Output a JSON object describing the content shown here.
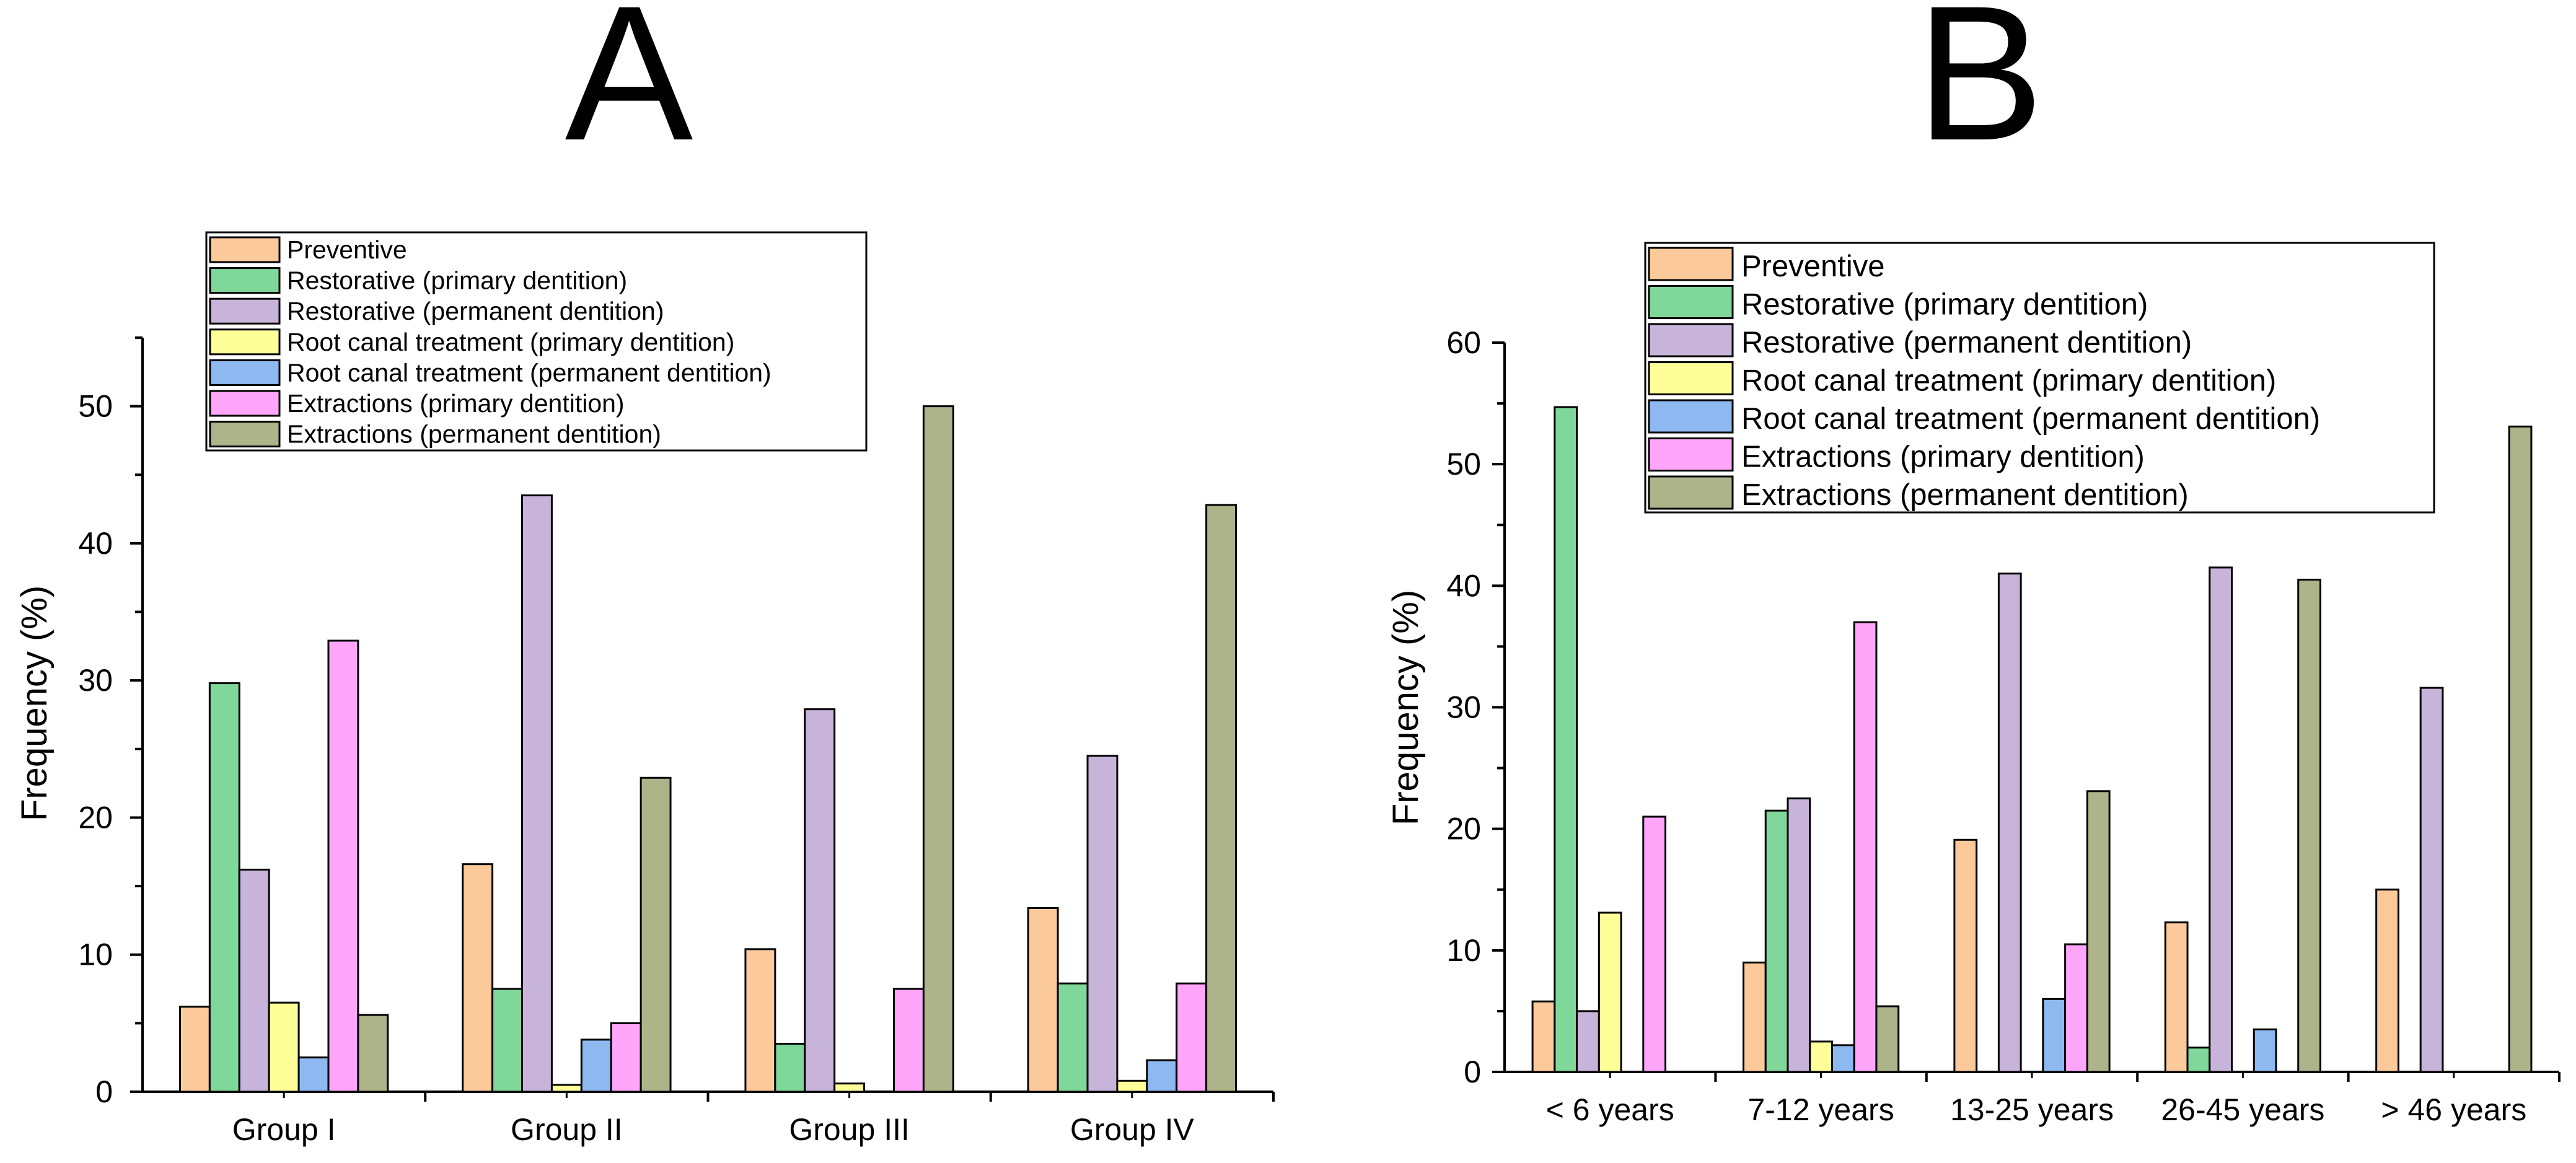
{
  "legend_entries": [
    {
      "name": "Preventive",
      "color": "#FCC99B"
    },
    {
      "name": "Restorative (primary dentition)",
      "color": "#7FD89A"
    },
    {
      "name": "Restorative (permanent dentition)",
      "color": "#C8B3DA"
    },
    {
      "name": "Root canal treatment (primary dentition)",
      "color": "#FFFF99"
    },
    {
      "name": "Root canal treatment (permanent dentition)",
      "color": "#8EB9F0"
    },
    {
      "name": "Extractions (primary dentition)",
      "color": "#FFA6FA"
    },
    {
      "name": "Extractions (permanent dentition)",
      "color": "#AEB48A"
    }
  ],
  "chart_data": [
    {
      "panel": "A",
      "type": "bar",
      "title": "A",
      "xlabel": "",
      "ylabel": "Frequency (%)",
      "ylim": [
        0,
        55
      ],
      "yticks": [
        0,
        10,
        20,
        30,
        40,
        50
      ],
      "categories": [
        "Group I",
        "Group II",
        "Group III",
        "Group IV"
      ],
      "legend_position": "top-left",
      "series": [
        {
          "name": "Preventive",
          "values": [
            6.2,
            16.6,
            10.4,
            13.4
          ]
        },
        {
          "name": "Restorative (primary dentition)",
          "values": [
            29.8,
            7.5,
            3.5,
            7.9
          ]
        },
        {
          "name": "Restorative (permanent dentition)",
          "values": [
            16.2,
            43.5,
            27.9,
            24.5
          ]
        },
        {
          "name": "Root canal treatment (primary dentition)",
          "values": [
            6.5,
            0.5,
            0.6,
            0.8
          ]
        },
        {
          "name": "Root canal treatment (permanent dentition)",
          "values": [
            2.5,
            3.8,
            0,
            2.3
          ]
        },
        {
          "name": "Extractions (primary dentition)",
          "values": [
            32.9,
            5.0,
            7.5,
            7.9
          ]
        },
        {
          "name": "Extractions (permanent dentition)",
          "values": [
            5.6,
            22.9,
            50.0,
            42.8
          ]
        }
      ]
    },
    {
      "panel": "B",
      "type": "bar",
      "title": "B",
      "xlabel": "",
      "ylabel": "Frequency (%)",
      "ylim": [
        0,
        60
      ],
      "yticks": [
        0,
        10,
        20,
        30,
        40,
        50,
        60
      ],
      "categories": [
        "< 6 years",
        "7-12 years",
        "13-25 years",
        "26-45 years",
        "> 46 years"
      ],
      "legend_position": "top-center",
      "series": [
        {
          "name": "Preventive",
          "values": [
            5.8,
            9.0,
            19.1,
            12.3,
            15.0
          ]
        },
        {
          "name": "Restorative (primary dentition)",
          "values": [
            54.7,
            21.5,
            0,
            2.0,
            0
          ]
        },
        {
          "name": "Restorative (permanent dentition)",
          "values": [
            5.0,
            22.5,
            41.0,
            41.5,
            31.6
          ]
        },
        {
          "name": "Root canal treatment (primary dentition)",
          "values": [
            13.1,
            2.5,
            0,
            0,
            0
          ]
        },
        {
          "name": "Root canal treatment (permanent dentition)",
          "values": [
            0,
            2.2,
            6.0,
            3.5,
            0
          ]
        },
        {
          "name": "Extractions (primary dentition)",
          "values": [
            21.0,
            37.0,
            10.5,
            0,
            0
          ]
        },
        {
          "name": "Extractions (permanent dentition)",
          "values": [
            0,
            5.4,
            23.1,
            40.5,
            53.1
          ]
        }
      ]
    }
  ]
}
